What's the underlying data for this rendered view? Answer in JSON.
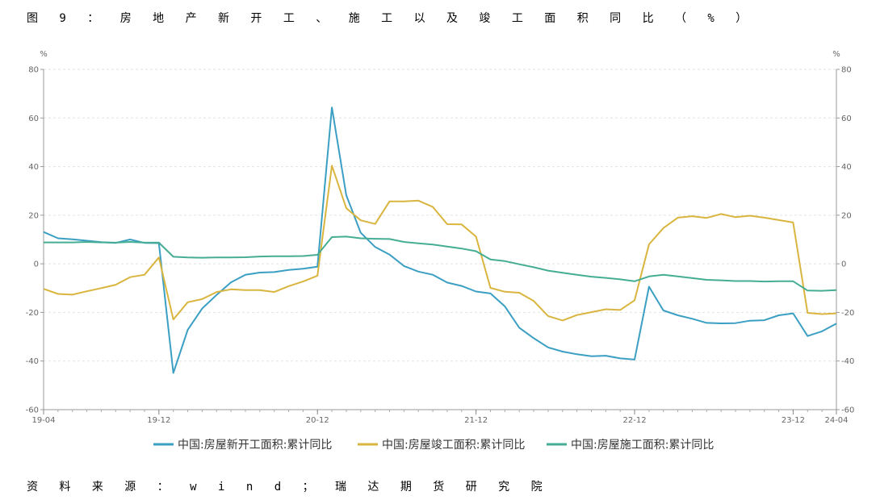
{
  "title": "图 9 ： 房 地 产 新 开 工 、 施 工 以 及 竣 工 面 积 同 比 （ % ）",
  "source": "资 料 来 源 ： w i n d ； 瑞 达 期 货 研 究 院",
  "chart_data": {
    "type": "line",
    "x": [
      "19-04",
      "19-05",
      "19-06",
      "19-07",
      "19-08",
      "19-09",
      "19-10",
      "19-11",
      "19-12",
      "20-02",
      "20-03",
      "20-04",
      "20-05",
      "20-06",
      "20-07",
      "20-08",
      "20-09",
      "20-10",
      "20-11",
      "20-12",
      "21-02",
      "21-03",
      "21-04",
      "21-05",
      "21-06",
      "21-07",
      "21-08",
      "21-09",
      "21-10",
      "21-11",
      "21-12",
      "22-02",
      "22-03",
      "22-04",
      "22-05",
      "22-06",
      "22-07",
      "22-08",
      "22-09",
      "22-10",
      "22-11",
      "22-12",
      "23-02",
      "23-03",
      "23-04",
      "23-05",
      "23-06",
      "23-07",
      "23-08",
      "23-09",
      "23-10",
      "23-11",
      "23-12",
      "24-02",
      "24-03",
      "24-04"
    ],
    "x_tick_labels": [
      "19-04",
      "19-12",
      "20-12",
      "21-12",
      "22-12",
      "23-12",
      "24-04"
    ],
    "y_ticks": [
      80,
      60,
      40,
      20,
      0,
      -20,
      -40,
      -60
    ],
    "y_tick_labels": [
      "80",
      "60",
      "40",
      "20",
      "0",
      "-20",
      "-40",
      "-60"
    ],
    "ylim": [
      -60,
      80
    ],
    "y_unit_left": "%",
    "y_unit_right": "%",
    "grid": true,
    "legend_position": "bottom",
    "series": [
      {
        "name": "中国:房屋新开工面积:累计同比",
        "color": "#3b9fc3",
        "values": [
          13.1,
          10.5,
          10.1,
          9.5,
          8.9,
          8.6,
          10.0,
          8.6,
          8.5,
          -44.9,
          -27.2,
          -18.4,
          -12.8,
          -7.6,
          -4.5,
          -3.6,
          -3.4,
          -2.5,
          -2.0,
          -1.2,
          64.3,
          28.2,
          12.8,
          6.9,
          3.8,
          -0.9,
          -3.2,
          -4.5,
          -7.7,
          -9.1,
          -11.4,
          -12.2,
          -17.5,
          -26.3,
          -30.6,
          -34.4,
          -36.1,
          -37.2,
          -38.0,
          -37.8,
          -38.9,
          -39.4,
          -9.4,
          -19.2,
          -21.2,
          -22.6,
          -24.3,
          -24.5,
          -24.4,
          -23.4,
          -23.2,
          -21.2,
          -20.4,
          -29.7,
          -27.8,
          -24.6
        ]
      },
      {
        "name": "中国:房屋竣工面积:累计同比",
        "color": "#d9b53f",
        "values": [
          -10.3,
          -12.4,
          -12.7,
          -11.3,
          -10.0,
          -8.6,
          -5.5,
          -4.5,
          2.6,
          -22.9,
          -15.8,
          -14.5,
          -11.6,
          -10.5,
          -10.8,
          -10.8,
          -11.6,
          -9.2,
          -7.3,
          -4.9,
          40.4,
          22.9,
          17.9,
          16.4,
          25.7,
          25.7,
          26.0,
          23.4,
          16.3,
          16.2,
          11.2,
          -9.9,
          -11.5,
          -11.9,
          -15.3,
          -21.5,
          -23.3,
          -21.1,
          -19.9,
          -18.7,
          -19.0,
          -15.0,
          8.0,
          14.7,
          19.0,
          19.6,
          18.9,
          20.5,
          19.2,
          19.8,
          19.0,
          18.0,
          17.0,
          -20.2,
          -20.7,
          -20.4
        ]
      },
      {
        "name": "中国:房屋施工面积:累计同比",
        "color": "#45ad94",
        "values": [
          8.8,
          8.8,
          8.8,
          9.0,
          8.8,
          8.7,
          9.0,
          8.7,
          8.7,
          2.9,
          2.6,
          2.5,
          2.6,
          2.6,
          2.7,
          3.0,
          3.1,
          3.1,
          3.2,
          3.7,
          11.0,
          11.2,
          10.5,
          10.3,
          10.2,
          9.0,
          8.4,
          7.9,
          7.1,
          6.3,
          5.2,
          1.8,
          1.1,
          -0.2,
          -1.4,
          -2.8,
          -3.7,
          -4.5,
          -5.3,
          -5.8,
          -6.4,
          -7.2,
          -5.2,
          -4.5,
          -5.2,
          -5.9,
          -6.6,
          -6.8,
          -7.1,
          -7.1,
          -7.3,
          -7.2,
          -7.2,
          -11.0,
          -11.1,
          -10.8
        ]
      }
    ]
  }
}
